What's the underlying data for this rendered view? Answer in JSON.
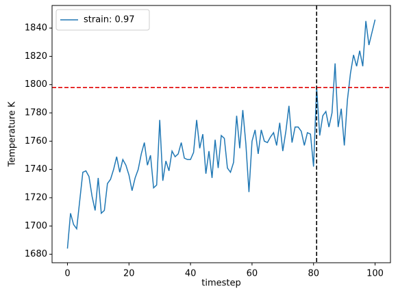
{
  "chart_data": {
    "type": "line",
    "x_label": "timestep",
    "y_label": "Temperature K",
    "x": [
      0,
      1,
      2,
      3,
      4,
      5,
      6,
      7,
      8,
      9,
      10,
      11,
      12,
      13,
      14,
      15,
      16,
      17,
      18,
      19,
      20,
      21,
      22,
      23,
      24,
      25,
      26,
      27,
      28,
      29,
      30,
      31,
      32,
      33,
      34,
      35,
      36,
      37,
      38,
      39,
      40,
      41,
      42,
      43,
      44,
      45,
      46,
      47,
      48,
      49,
      50,
      51,
      52,
      53,
      54,
      55,
      56,
      57,
      58,
      59,
      60,
      61,
      62,
      63,
      64,
      65,
      66,
      67,
      68,
      69,
      70,
      71,
      72,
      73,
      74,
      75,
      76,
      77,
      78,
      79,
      80,
      81,
      82,
      83,
      84,
      85,
      86,
      87,
      88,
      89,
      90,
      91,
      92,
      93,
      94,
      95,
      96,
      97,
      98,
      99,
      100
    ],
    "series": [
      {
        "name": "strain: 0.97",
        "color": "#1f77b4",
        "values": [
          1684,
          1709,
          1701,
          1698,
          1718,
          1738,
          1739,
          1735,
          1721,
          1711,
          1734,
          1709,
          1711,
          1730,
          1733,
          1740,
          1749,
          1738,
          1747,
          1743,
          1736,
          1725,
          1734,
          1740,
          1751,
          1759,
          1743,
          1750,
          1727,
          1729,
          1775,
          1732,
          1746,
          1739,
          1753,
          1749,
          1751,
          1759,
          1748,
          1747,
          1747,
          1752,
          1775,
          1755,
          1765,
          1737,
          1753,
          1734,
          1761,
          1741,
          1764,
          1762,
          1741,
          1738,
          1745,
          1778,
          1755,
          1782,
          1758,
          1724,
          1760,
          1768,
          1751,
          1768,
          1760,
          1759,
          1763,
          1766,
          1757,
          1773,
          1753,
          1767,
          1785,
          1759,
          1770,
          1770,
          1767,
          1757,
          1766,
          1765,
          1742,
          1798,
          1764,
          1778,
          1781,
          1770,
          1780,
          1815,
          1770,
          1783,
          1757,
          1789,
          1808,
          1821,
          1813,
          1824,
          1813,
          1845,
          1828,
          1837,
          1846
        ]
      }
    ],
    "reference_lines": [
      {
        "axis": "y",
        "value": 1798,
        "color": "#e00000"
      },
      {
        "axis": "x",
        "value": 81,
        "color": "#000000"
      }
    ],
    "xlim": [
      -5,
      105
    ],
    "ylim": [
      1674,
      1856
    ],
    "xticks": [
      0,
      20,
      40,
      60,
      80,
      100
    ],
    "yticks": [
      1680,
      1700,
      1720,
      1740,
      1760,
      1780,
      1800,
      1820,
      1840
    ],
    "legend": "upper left",
    "grid": false
  }
}
